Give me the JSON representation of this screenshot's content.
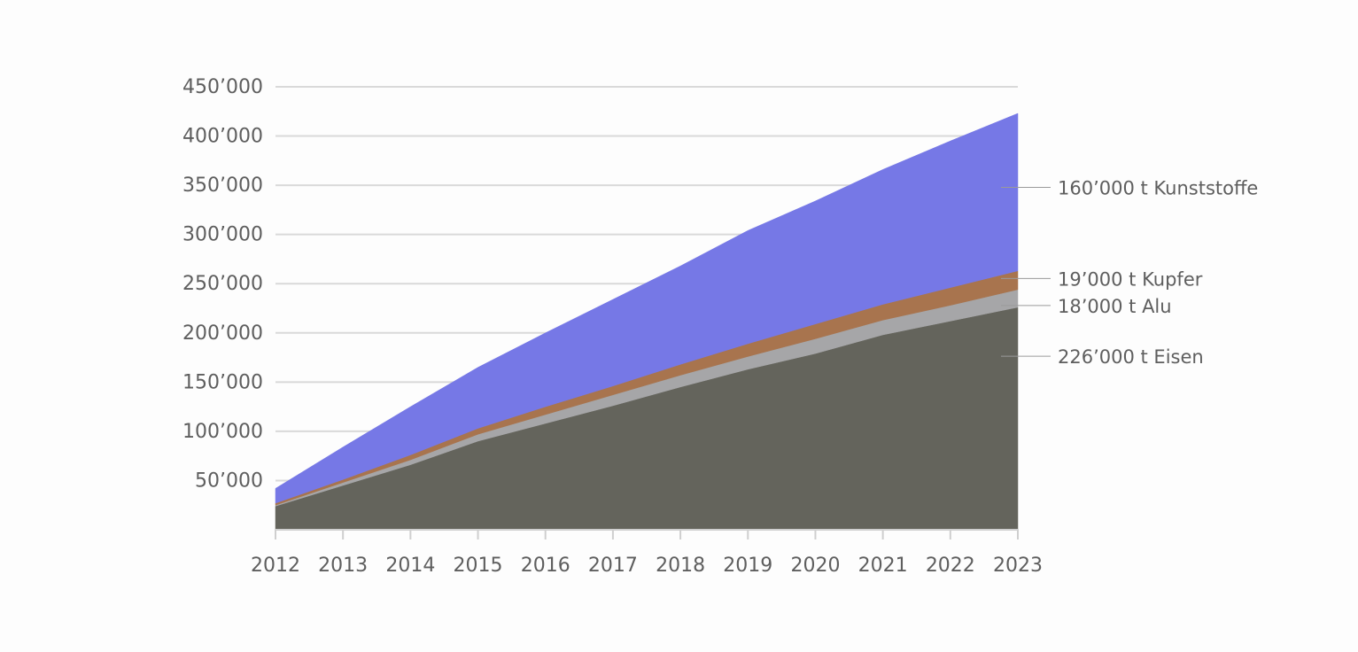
{
  "chart_data": {
    "type": "area",
    "stacked": true,
    "title": "",
    "xlabel": "",
    "ylabel": "",
    "x": [
      "2012",
      "2013",
      "2014",
      "2015",
      "2016",
      "2017",
      "2018",
      "2019",
      "2020",
      "2021",
      "2022",
      "2023"
    ],
    "ylim": [
      0,
      450000
    ],
    "yticks": [
      {
        "value": 50000,
        "label": "50’000"
      },
      {
        "value": 100000,
        "label": "100’000"
      },
      {
        "value": 150000,
        "label": "150’000"
      },
      {
        "value": 200000,
        "label": "200’000"
      },
      {
        "value": 250000,
        "label": "250’000"
      },
      {
        "value": 300000,
        "label": "300’000"
      },
      {
        "value": 350000,
        "label": "350’000"
      },
      {
        "value": 400000,
        "label": "400’000"
      },
      {
        "value": 450000,
        "label": "450’000"
      }
    ],
    "grid": true,
    "legend": "direct-labels-right",
    "series": [
      {
        "key": "eisen",
        "name": "226’000 t Eisen",
        "color": "#64645c",
        "values": [
          24000,
          45000,
          66000,
          90000,
          108000,
          126000,
          145000,
          163000,
          179000,
          198000,
          212000,
          226000
        ]
      },
      {
        "key": "alu",
        "name": "18’000 t Alu",
        "color": "#a6a6a8",
        "values": [
          1000,
          3000,
          5000,
          7000,
          9000,
          11000,
          12000,
          13000,
          15000,
          15000,
          16000,
          18000
        ]
      },
      {
        "key": "kupfer",
        "name": "19’000 t Kupfer",
        "color": "#a8744e",
        "values": [
          2000,
          3000,
          5000,
          6000,
          8000,
          9000,
          11000,
          13000,
          15000,
          16000,
          18000,
          19000
        ]
      },
      {
        "key": "kunststoffe",
        "name": "160’000 t Kunststoffe",
        "color": "#7678e6",
        "values": [
          15000,
          33000,
          49000,
          62000,
          75000,
          88000,
          100000,
          115000,
          125000,
          137000,
          149000,
          160000
        ]
      }
    ]
  }
}
